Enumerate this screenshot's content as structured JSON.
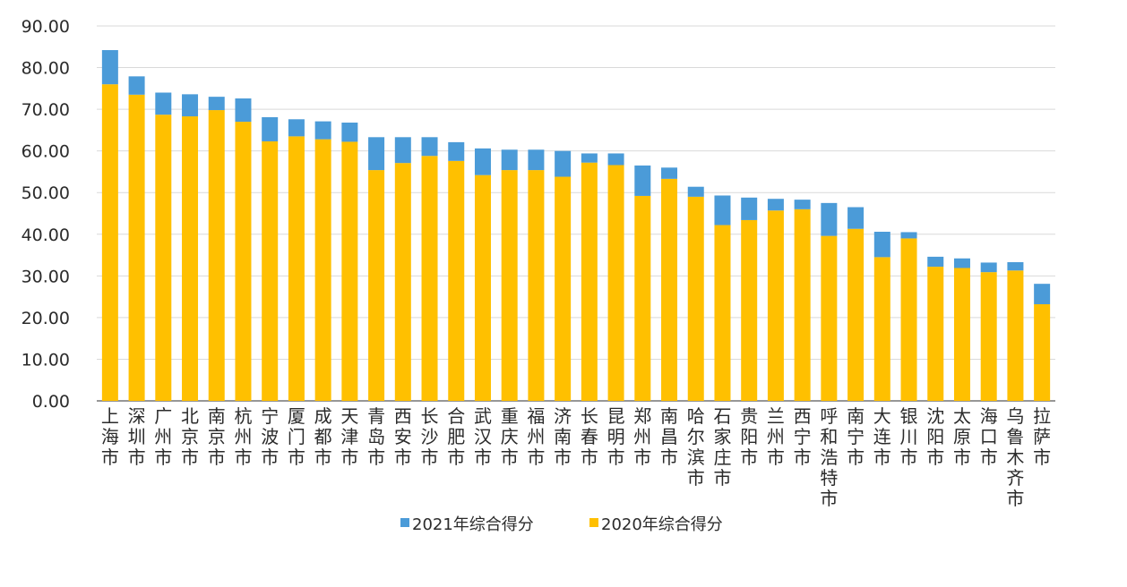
{
  "chart_data": {
    "type": "bar",
    "stacked": true,
    "title": "",
    "xlabel": "",
    "ylabel": "",
    "ylim": [
      0,
      90
    ],
    "yticks": [
      "0.00",
      "10.00",
      "20.00",
      "30.00",
      "40.00",
      "50.00",
      "60.00",
      "70.00",
      "80.00",
      "90.00"
    ],
    "grid": true,
    "legend_position": "bottom",
    "categories": [
      "上海市",
      "深圳市",
      "广州市",
      "北京市",
      "南京市",
      "杭州市",
      "宁波市",
      "厦门市",
      "成都市",
      "天津市",
      "青岛市",
      "西安市",
      "长沙市",
      "合肥市",
      "武汉市",
      "重庆市",
      "福州市",
      "济南市",
      "长春市",
      "昆明市",
      "郑州市",
      "南昌市",
      "哈尔滨市",
      "石家庄市",
      "贵阳市",
      "兰州市",
      "西宁市",
      "呼和浩特市",
      "南宁市",
      "大连市",
      "银川市",
      "沈阳市",
      "太原市",
      "海口市",
      "乌鲁木齐市",
      "拉萨市"
    ],
    "series": [
      {
        "name": "2020年综合得分",
        "color": "#FFC000",
        "values": [
          76.0,
          73.5,
          68.7,
          68.3,
          69.8,
          67.0,
          62.3,
          63.5,
          62.8,
          62.2,
          55.4,
          57.1,
          58.8,
          57.6,
          54.2,
          55.4,
          55.4,
          53.8,
          57.2,
          56.6,
          49.2,
          53.3,
          49.0,
          42.2,
          43.4,
          45.7,
          46.0,
          39.6,
          41.3,
          34.5,
          39.0,
          32.2,
          31.9,
          30.9,
          31.3,
          23.2
        ]
      },
      {
        "name": "2021年综合得分",
        "color": "#4B9BD8",
        "values": [
          8.2,
          4.4,
          5.3,
          5.3,
          3.2,
          5.6,
          5.8,
          4.1,
          4.3,
          4.6,
          7.9,
          6.2,
          4.5,
          4.5,
          6.4,
          4.9,
          4.9,
          6.2,
          2.2,
          2.8,
          7.3,
          2.7,
          2.4,
          7.1,
          5.4,
          2.8,
          2.3,
          7.9,
          5.2,
          6.1,
          1.5,
          2.4,
          2.3,
          2.3,
          2.0,
          4.9
        ]
      }
    ]
  }
}
